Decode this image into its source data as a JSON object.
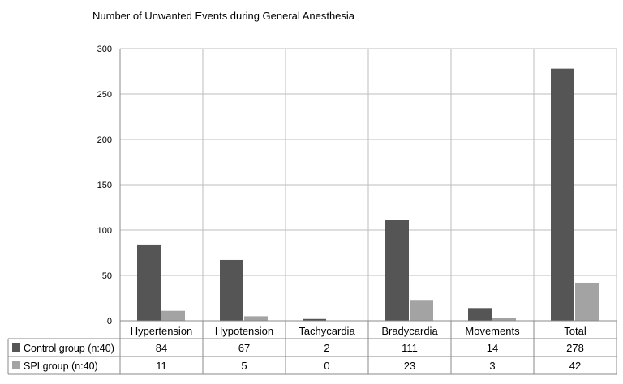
{
  "chart_data": {
    "type": "bar",
    "title": "Number of Unwanted Events during General Anesthesia",
    "categories": [
      "Hypertension",
      "Hypotension",
      "Tachycardia",
      "Bradycardia",
      "Movements",
      "Total"
    ],
    "series": [
      {
        "name": "Control group (n:40)",
        "values": [
          84,
          67,
          2,
          111,
          14,
          278
        ],
        "color": "#555555"
      },
      {
        "name": "SPI group (n:40)",
        "values": [
          11,
          5,
          0,
          23,
          3,
          42
        ],
        "color": "#a3a3a3"
      }
    ],
    "ylim": [
      0,
      300
    ],
    "yticks": [
      0,
      50,
      100,
      150,
      200,
      250,
      300
    ],
    "grid": true,
    "legend": "data table rows below the chart",
    "colors": {
      "grid": "#bdbdbd",
      "axis": "#8a8a8a"
    }
  }
}
